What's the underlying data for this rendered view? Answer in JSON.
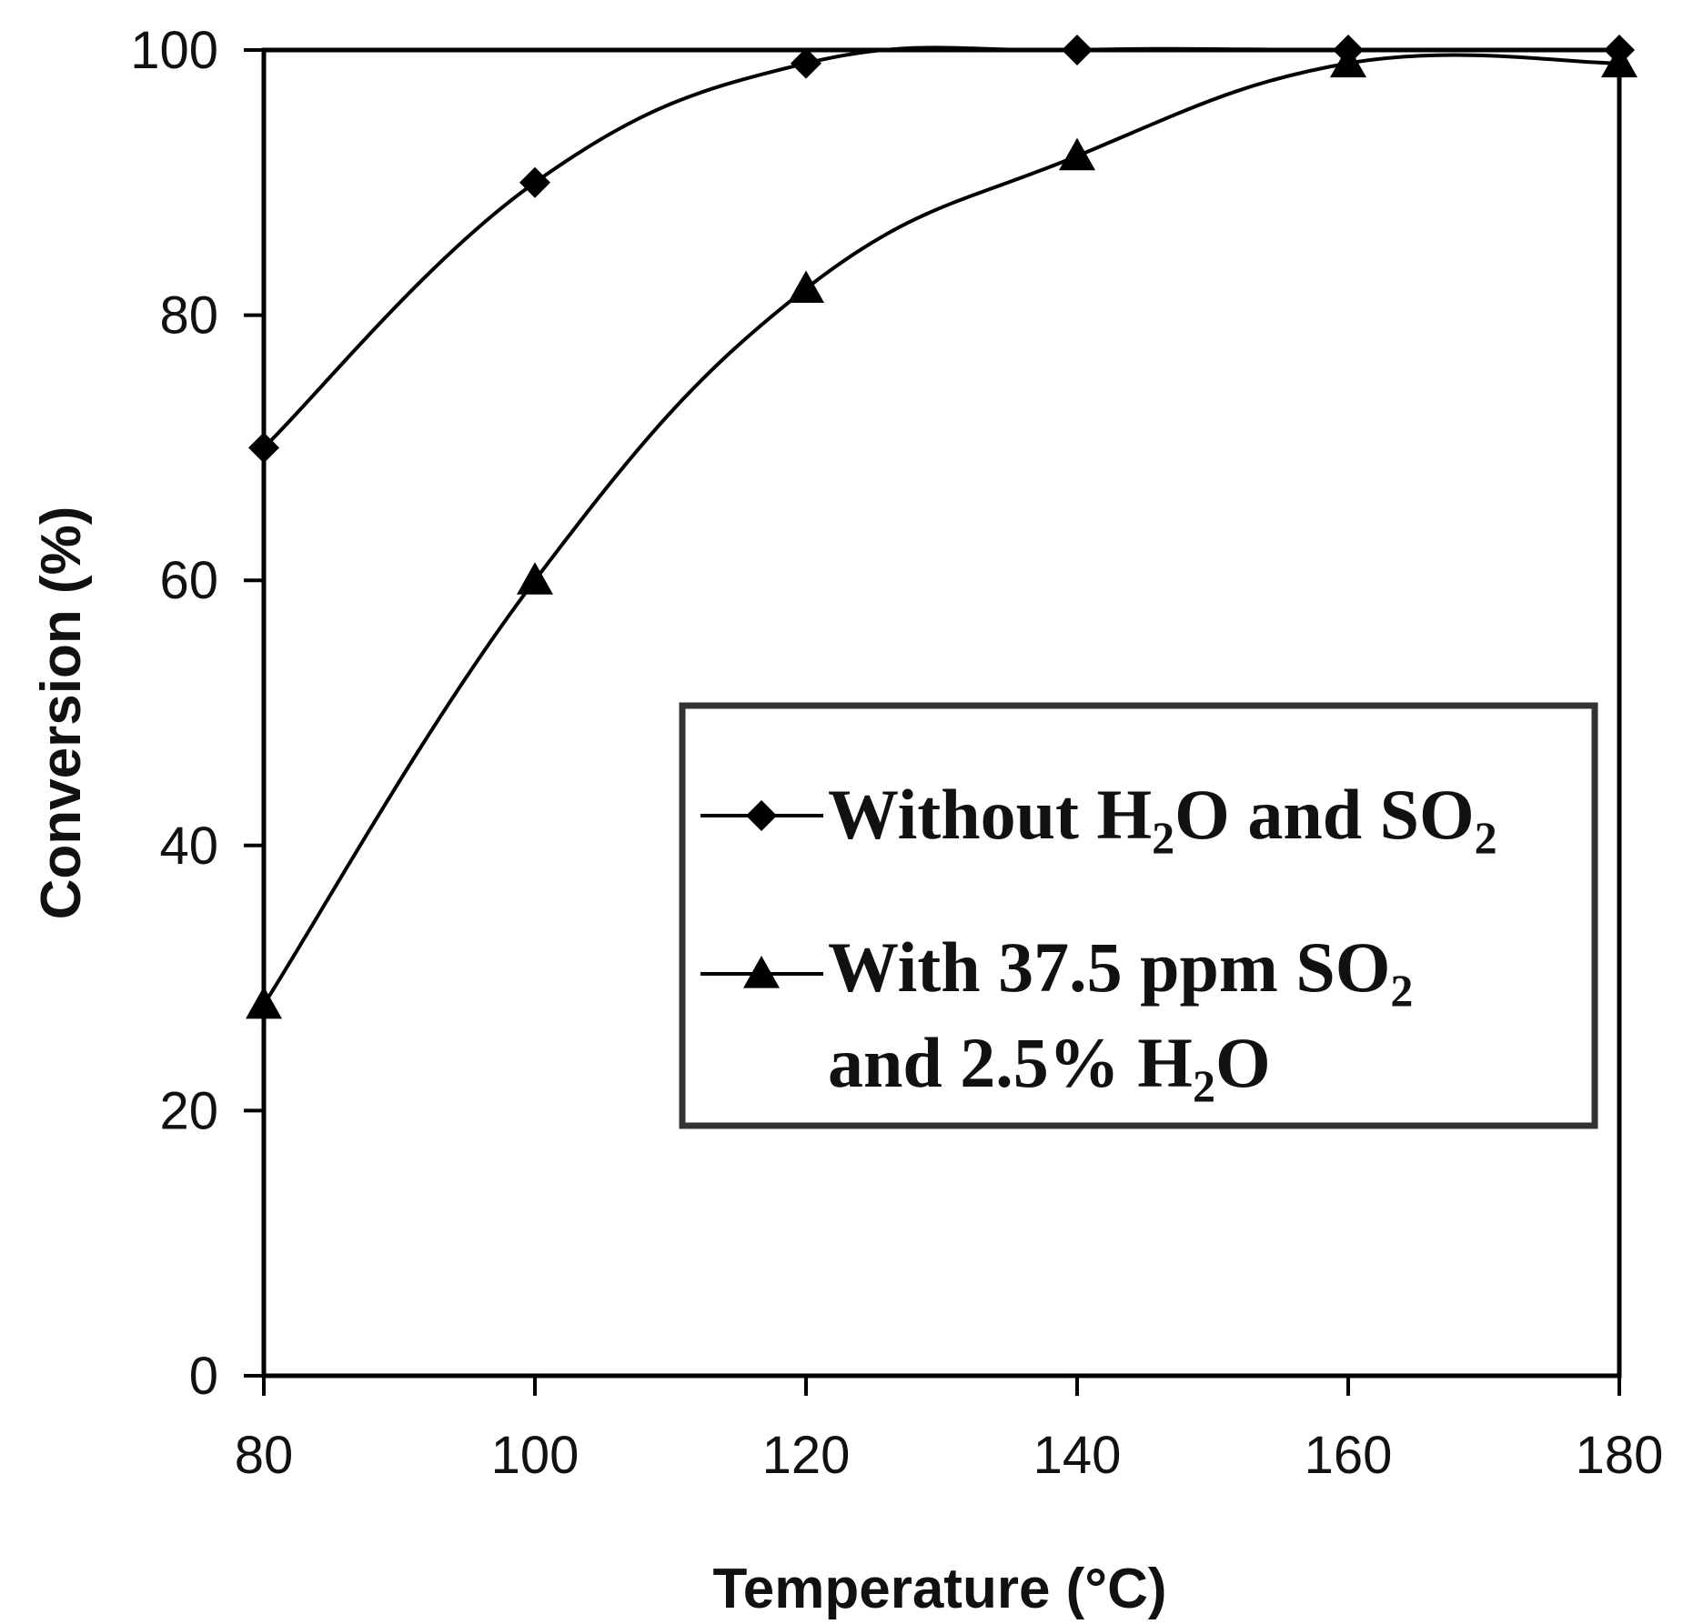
{
  "chart_data": {
    "type": "line",
    "xlabel": "Temperature (°C)",
    "ylabel": "Conversion (%)",
    "xlim": [
      80,
      180
    ],
    "ylim": [
      0,
      100
    ],
    "x_ticks": [
      "80",
      "100",
      "120",
      "140",
      "160",
      "180"
    ],
    "y_ticks": [
      "0",
      "20",
      "40",
      "60",
      "80",
      "100"
    ],
    "grid": false,
    "legend_position": "right-center",
    "series": [
      {
        "name": "Without H2O and SO2",
        "legend_lines": [
          [
            {
              "t": "Without H"
            },
            {
              "t": "2",
              "sub": true
            },
            {
              "t": "O and SO"
            },
            {
              "t": "2",
              "sub": true
            }
          ]
        ],
        "marker": "diamond",
        "x": [
          80,
          100,
          120,
          140,
          160,
          180
        ],
        "values": [
          70,
          90,
          99,
          100,
          100,
          100
        ]
      },
      {
        "name": "With 37.5 ppm SO2 and 2.5% H2O",
        "legend_lines": [
          [
            {
              "t": "With 37.5 ppm SO"
            },
            {
              "t": "2",
              "sub": true
            }
          ],
          [
            {
              "t": "and 2.5% H"
            },
            {
              "t": "2",
              "sub": true
            },
            {
              "t": "O"
            }
          ]
        ],
        "marker": "triangle",
        "x": [
          80,
          100,
          120,
          140,
          160,
          180
        ],
        "values": [
          28,
          60,
          82,
          92,
          99,
          99
        ]
      }
    ]
  }
}
